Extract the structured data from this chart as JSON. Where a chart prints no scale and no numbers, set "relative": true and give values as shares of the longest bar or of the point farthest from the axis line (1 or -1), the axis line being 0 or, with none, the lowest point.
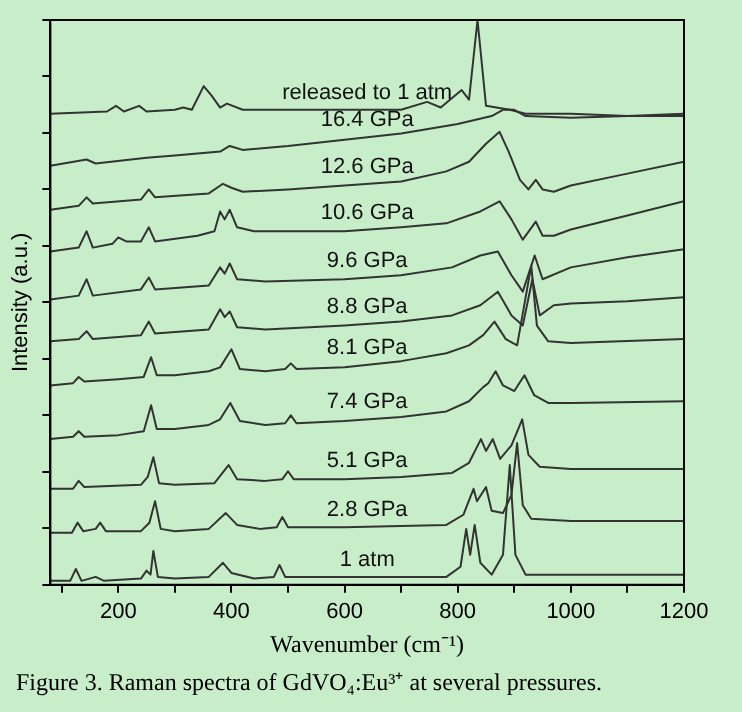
{
  "chart_data": {
    "type": "line",
    "relative": true,
    "xlabel": "Wavenumber (cm⁻¹)",
    "ylabel": "Intensity (a.u.)",
    "xlim": [
      80,
      1200
    ],
    "xticks": [
      {
        "value": 100,
        "label": null
      },
      200,
      {
        "value": 300,
        "label": null
      },
      400,
      {
        "value": 500,
        "label": null
      },
      600,
      {
        "value": 700,
        "label": null
      },
      800,
      {
        "value": 900,
        "label": null
      },
      1000,
      {
        "value": 1100,
        "label": null
      },
      1200
    ],
    "tick_labels": "x",
    "grid": false,
    "legend": false,
    "marker": "none",
    "line_style": "solid",
    "annotations": [
      "Figure 3.  Raman spectra of GdVO₄:Eu³⁺ at several pressures."
    ],
    "series": [
      {
        "name": "1 atm",
        "color": "#333333",
        "x": [
          80,
          115,
          125,
          135,
          160,
          175,
          240,
          250,
          257,
          262,
          270,
          300,
          360,
          385,
          400,
          440,
          475,
          485,
          495,
          600,
          780,
          805,
          815,
          822,
          830,
          840,
          860,
          880,
          892,
          902,
          920,
          1000,
          1200
        ],
        "values": [
          0.007,
          0.007,
          0.028,
          0.007,
          0.014,
          0.007,
          0.011,
          0.025,
          0.018,
          0.06,
          0.014,
          0.011,
          0.014,
          0.039,
          0.021,
          0.011,
          0.014,
          0.035,
          0.014,
          0.014,
          0.014,
          0.032,
          0.099,
          0.053,
          0.106,
          0.039,
          0.018,
          0.053,
          0.212,
          0.053,
          0.018,
          0.018,
          0.018
        ]
      },
      {
        "name": "2.8 GPa",
        "color": "#333333",
        "x": [
          80,
          118,
          128,
          138,
          160,
          168,
          178,
          240,
          255,
          265,
          275,
          300,
          360,
          390,
          410,
          450,
          480,
          490,
          500,
          600,
          780,
          810,
          828,
          834,
          850,
          860,
          880,
          895,
          905,
          915,
          930,
          1000,
          1200
        ],
        "values": [
          0.092,
          0.092,
          0.11,
          0.095,
          0.099,
          0.11,
          0.095,
          0.095,
          0.11,
          0.148,
          0.099,
          0.095,
          0.099,
          0.127,
          0.106,
          0.099,
          0.102,
          0.12,
          0.102,
          0.102,
          0.106,
          0.124,
          0.17,
          0.148,
          0.173,
          0.131,
          0.127,
          0.159,
          0.251,
          0.141,
          0.117,
          0.113,
          0.113
        ]
      },
      {
        "name": "5.1 GPa",
        "color": "#333333",
        "x": [
          80,
          120,
          130,
          140,
          240,
          252,
          262,
          272,
          300,
          370,
          395,
          410,
          460,
          490,
          500,
          510,
          600,
          700,
          790,
          820,
          841,
          850,
          862,
          875,
          895,
          914,
          925,
          945,
          1000,
          1200
        ],
        "values": [
          0.17,
          0.17,
          0.184,
          0.173,
          0.177,
          0.191,
          0.226,
          0.18,
          0.177,
          0.18,
          0.212,
          0.187,
          0.184,
          0.187,
          0.201,
          0.187,
          0.187,
          0.191,
          0.198,
          0.216,
          0.258,
          0.237,
          0.258,
          0.223,
          0.247,
          0.293,
          0.23,
          0.209,
          0.205,
          0.205
        ]
      },
      {
        "name": "7.4 GPa",
        "color": "#333333",
        "x": [
          80,
          120,
          130,
          140,
          200,
          245,
          258,
          268,
          300,
          360,
          380,
          398,
          415,
          460,
          495,
          505,
          515,
          600,
          700,
          780,
          820,
          845,
          854,
          867,
          880,
          900,
          918,
          935,
          960,
          1000,
          1200
        ],
        "values": [
          0.258,
          0.262,
          0.272,
          0.262,
          0.265,
          0.272,
          0.318,
          0.276,
          0.276,
          0.283,
          0.293,
          0.322,
          0.29,
          0.283,
          0.286,
          0.3,
          0.286,
          0.29,
          0.297,
          0.307,
          0.325,
          0.35,
          0.357,
          0.378,
          0.353,
          0.343,
          0.371,
          0.336,
          0.322,
          0.322,
          0.325
        ]
      },
      {
        "name": "8.1 GPa",
        "color": "#333333",
        "x": [
          80,
          120,
          130,
          140,
          200,
          245,
          258,
          268,
          300,
          360,
          380,
          400,
          415,
          460,
          495,
          505,
          515,
          600,
          700,
          780,
          820,
          845,
          865,
          885,
          905,
          930,
          940,
          960,
          1000,
          1200
        ],
        "values": [
          0.353,
          0.357,
          0.368,
          0.36,
          0.364,
          0.368,
          0.403,
          0.371,
          0.371,
          0.378,
          0.385,
          0.417,
          0.382,
          0.378,
          0.382,
          0.392,
          0.382,
          0.385,
          0.396,
          0.41,
          0.424,
          0.442,
          0.466,
          0.435,
          0.424,
          0.565,
          0.459,
          0.431,
          0.428,
          0.435
        ]
      },
      {
        "name": "8.8 GPa",
        "color": "#333333",
        "x": [
          80,
          130,
          144,
          155,
          240,
          254,
          265,
          360,
          380,
          388,
          397,
          410,
          460,
          600,
          700,
          790,
          840,
          871,
          895,
          915,
          932,
          945,
          970,
          1000,
          1100,
          1200
        ],
        "values": [
          0.431,
          0.435,
          0.449,
          0.435,
          0.442,
          0.466,
          0.445,
          0.452,
          0.488,
          0.474,
          0.484,
          0.456,
          0.452,
          0.459,
          0.466,
          0.477,
          0.495,
          0.519,
          0.477,
          0.459,
          0.541,
          0.477,
          0.495,
          0.498,
          0.502,
          0.509
        ]
      },
      {
        "name": "9.6 GPa",
        "color": "#333333",
        "x": [
          80,
          130,
          144,
          155,
          240,
          254,
          265,
          360,
          380,
          388,
          397,
          410,
          460,
          600,
          700,
          790,
          840,
          871,
          895,
          915,
          936,
          950,
          1000,
          1100,
          1200
        ],
        "values": [
          0.505,
          0.512,
          0.541,
          0.512,
          0.523,
          0.544,
          0.523,
          0.53,
          0.562,
          0.551,
          0.569,
          0.541,
          0.537,
          0.541,
          0.548,
          0.562,
          0.583,
          0.59,
          0.548,
          0.519,
          0.583,
          0.541,
          0.562,
          0.58,
          0.594
        ]
      },
      {
        "name": "10.6 GPa",
        "color": "#333333",
        "x": [
          80,
          130,
          144,
          155,
          190,
          200,
          214,
          240,
          254,
          265,
          340,
          370,
          380,
          388,
          397,
          410,
          440,
          600,
          700,
          780,
          840,
          874,
          895,
          915,
          938,
          950,
          970,
          1000,
          1100,
          1200
        ],
        "values": [
          0.59,
          0.597,
          0.626,
          0.597,
          0.604,
          0.615,
          0.608,
          0.608,
          0.633,
          0.608,
          0.618,
          0.626,
          0.661,
          0.647,
          0.664,
          0.633,
          0.626,
          0.626,
          0.633,
          0.64,
          0.661,
          0.679,
          0.647,
          0.611,
          0.643,
          0.618,
          0.618,
          0.629,
          0.654,
          0.679
        ]
      },
      {
        "name": "12.6 GPa",
        "color": "#333333",
        "x": [
          80,
          130,
          144,
          155,
          240,
          254,
          265,
          360,
          385,
          400,
          420,
          500,
          600,
          700,
          780,
          820,
          850,
          874,
          890,
          910,
          925,
          938,
          950,
          970,
          1000,
          1100,
          1200
        ],
        "values": [
          0.664,
          0.671,
          0.686,
          0.675,
          0.682,
          0.7,
          0.686,
          0.693,
          0.71,
          0.703,
          0.696,
          0.7,
          0.707,
          0.714,
          0.732,
          0.749,
          0.781,
          0.802,
          0.767,
          0.717,
          0.7,
          0.717,
          0.7,
          0.696,
          0.707,
          0.728,
          0.749
        ]
      },
      {
        "name": "16.4 GPa",
        "color": "#333333",
        "x": [
          80,
          144,
          160,
          250,
          300,
          380,
          397,
          420,
          500,
          600,
          700,
          800,
          860,
          880,
          900,
          920,
          1000,
          1100,
          1200
        ],
        "values": [
          0.742,
          0.753,
          0.746,
          0.756,
          0.76,
          0.767,
          0.777,
          0.77,
          0.777,
          0.788,
          0.799,
          0.816,
          0.83,
          0.841,
          0.841,
          0.83,
          0.827,
          0.83,
          0.834
        ]
      },
      {
        "name": "released to 1 atm",
        "color": "#333333",
        "x": [
          80,
          180,
          196,
          210,
          237,
          250,
          300,
          315,
          330,
          351,
          365,
          380,
          392,
          420,
          500,
          600,
          700,
          746,
          770,
          807,
          820,
          835,
          850,
          892,
          920,
          1000,
          1100,
          1200
        ],
        "values": [
          0.834,
          0.838,
          0.848,
          0.838,
          0.848,
          0.838,
          0.841,
          0.845,
          0.841,
          0.883,
          0.866,
          0.845,
          0.852,
          0.841,
          0.841,
          0.841,
          0.841,
          0.855,
          0.845,
          0.876,
          0.859,
          1.0,
          0.848,
          0.841,
          0.834,
          0.834,
          0.83,
          0.83
        ]
      }
    ]
  }
}
